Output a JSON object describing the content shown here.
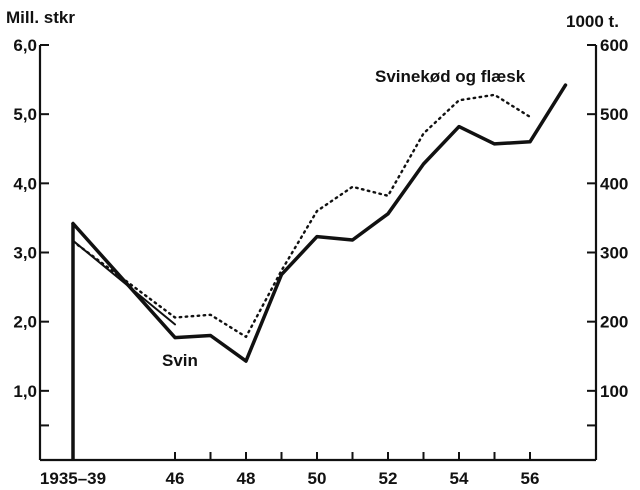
{
  "chart_data": {
    "type": "line",
    "title": "",
    "left_axis": {
      "title": "Mill. stkr",
      "ylim": [
        0,
        6.0
      ],
      "ticks": [
        0,
        1.0,
        2.0,
        3.0,
        4.0,
        5.0,
        6.0
      ],
      "tick_labels": [
        "",
        "1,0",
        "2,0",
        "3,0",
        "4,0",
        "5,0",
        "6,0"
      ]
    },
    "right_axis": {
      "title": "1000 t.",
      "ylim": [
        0,
        600
      ],
      "ticks": [
        0,
        100,
        200,
        300,
        400,
        500,
        600
      ],
      "tick_labels": [
        "",
        "100",
        "200",
        "300",
        "400",
        "500",
        "600"
      ]
    },
    "x_axis": {
      "tick_labels": [
        "1935–39",
        "46",
        "48",
        "50",
        "52",
        "54",
        "56"
      ],
      "tick_positions": [
        "1935-39",
        46,
        48,
        50,
        52,
        54,
        56
      ]
    },
    "series": [
      {
        "name": "Svin",
        "style": "solid-thick",
        "axis": "left",
        "points": [
          [
            "1935-39",
            3.42
          ],
          [
            46,
            1.77
          ],
          [
            47,
            1.8
          ],
          [
            48,
            1.43
          ],
          [
            49,
            2.68
          ],
          [
            50,
            3.23
          ],
          [
            51,
            3.18
          ],
          [
            52,
            3.56
          ],
          [
            53,
            4.28
          ],
          [
            54,
            4.82
          ],
          [
            55,
            4.57
          ],
          [
            56,
            4.6
          ],
          [
            57,
            5.42
          ]
        ]
      },
      {
        "name": "Svinekød og flæsk",
        "style": "dotted",
        "axis": "right",
        "points": [
          [
            "1935-39",
            316
          ],
          [
            46,
            206
          ],
          [
            47,
            210
          ],
          [
            48,
            178
          ],
          [
            49,
            274
          ],
          [
            50,
            360
          ],
          [
            51,
            395
          ],
          [
            52,
            382
          ],
          [
            53,
            472
          ],
          [
            54,
            520
          ],
          [
            55,
            528
          ],
          [
            56,
            496
          ]
        ]
      },
      {
        "name": "",
        "style": "solid-thin",
        "axis": "left",
        "points": [
          [
            "1935-39",
            3.17
          ],
          [
            46,
            1.96
          ]
        ]
      }
    ],
    "annotations": [
      "Svin",
      "Svinekød og flæsk"
    ]
  }
}
